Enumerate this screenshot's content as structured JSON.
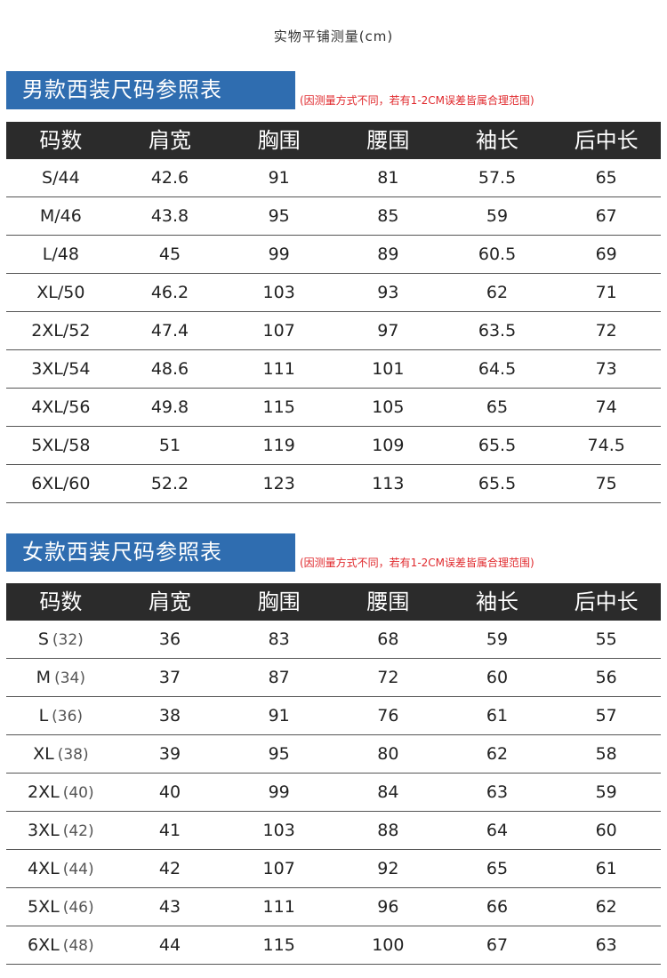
{
  "top_note": "实物平铺测量(cm)",
  "men": {
    "title": "男款西装尺码参照表",
    "note": "(因测量方式不同，若有1-2CM误差皆属合理范围)",
    "headers": [
      "码数",
      "肩宽",
      "胸围",
      "腰围",
      "袖长",
      "后中长"
    ],
    "rows": [
      [
        "S/44",
        "42.6",
        "91",
        "81",
        "57.5",
        "65"
      ],
      [
        "M/46",
        "43.8",
        "95",
        "85",
        "59",
        "67"
      ],
      [
        "L/48",
        "45",
        "99",
        "89",
        "60.5",
        "69"
      ],
      [
        "XL/50",
        "46.2",
        "103",
        "93",
        "62",
        "71"
      ],
      [
        "2XL/52",
        "47.4",
        "107",
        "97",
        "63.5",
        "72"
      ],
      [
        "3XL/54",
        "48.6",
        "111",
        "101",
        "64.5",
        "73"
      ],
      [
        "4XL/56",
        "49.8",
        "115",
        "105",
        "65",
        "74"
      ],
      [
        "5XL/58",
        "51",
        "119",
        "109",
        "65.5",
        "74.5"
      ],
      [
        "6XL/60",
        "52.2",
        "123",
        "113",
        "65.5",
        "75"
      ]
    ]
  },
  "women": {
    "title": "女款西装尺码参照表",
    "note": "(因测量方式不同，若有1-2CM误差皆属合理范围)",
    "headers": [
      "码数",
      "肩宽",
      "胸围",
      "腰围",
      "袖长",
      "后中长"
    ],
    "rows": [
      [
        {
          "size": "S",
          "alt": "(32)"
        },
        "36",
        "83",
        "68",
        "59",
        "55"
      ],
      [
        {
          "size": "M",
          "alt": "(34)"
        },
        "37",
        "87",
        "72",
        "60",
        "56"
      ],
      [
        {
          "size": "L",
          "alt": "(36)"
        },
        "38",
        "91",
        "76",
        "61",
        "57"
      ],
      [
        {
          "size": "XL",
          "alt": "(38)"
        },
        "39",
        "95",
        "80",
        "62",
        "58"
      ],
      [
        {
          "size": "2XL",
          "alt": "(40)"
        },
        "40",
        "99",
        "84",
        "63",
        "59"
      ],
      [
        {
          "size": "3XL",
          "alt": "(42)"
        },
        "41",
        "103",
        "88",
        "64",
        "60"
      ],
      [
        {
          "size": "4XL",
          "alt": "(44)"
        },
        "42",
        "107",
        "92",
        "65",
        "61"
      ],
      [
        {
          "size": "5XL",
          "alt": "(46)"
        },
        "43",
        "111",
        "96",
        "66",
        "62"
      ],
      [
        {
          "size": "6XL",
          "alt": "(48)"
        },
        "44",
        "115",
        "100",
        "67",
        "63"
      ]
    ]
  }
}
